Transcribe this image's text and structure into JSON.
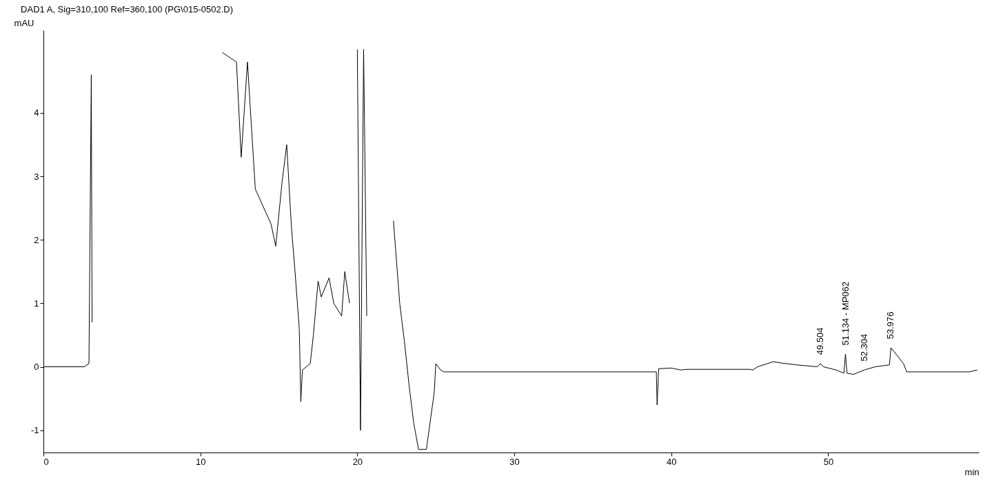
{
  "chart_data": {
    "type": "line",
    "title": "DAD1 A, Sig=310,100 Ref=360,100 (PG\\015-0502.D)",
    "xlabel": "min",
    "ylabel": "mAU",
    "x": [
      0,
      2.6,
      2.9,
      3.05,
      3.1,
      3.2,
      11.2,
      11.4,
      12.3,
      12.6,
      13,
      13.5,
      14.5,
      14.8,
      15.2,
      15.5,
      15.8,
      16,
      16.3,
      16.4,
      16.5,
      17,
      17.2,
      17.5,
      17.7,
      18.2,
      18.5,
      19,
      19.2,
      19.5,
      19.7,
      20,
      20.2,
      20.4,
      20.6,
      21.8,
      22.3,
      22.7,
      23,
      23.3,
      23.6,
      23.9,
      24.4,
      24.9,
      25,
      25.3,
      25.5,
      39.05,
      39.1,
      39.2,
      40,
      40.6,
      41,
      45,
      45.2,
      45.5,
      46.5,
      47,
      48,
      49.3,
      49.5,
      49.7,
      50.5,
      51,
      51.1,
      51.2,
      51.6,
      52.3,
      53,
      53.9,
      54,
      54.8,
      55,
      59,
      59.5
    ],
    "series": [
      {
        "color": "#000000",
        "values": [
          0,
          0,
          0.05,
          4.6,
          0.7,
          null,
          null,
          4.95,
          4.8,
          3.3,
          4.8,
          2.8,
          2.25,
          1.9,
          2.9,
          3.5,
          2.2,
          1.6,
          0.6,
          -0.55,
          -0.05,
          0.05,
          0.5,
          1.35,
          1.1,
          1.4,
          1.0,
          0.8,
          1.5,
          1.0,
          null,
          5.0,
          -1.0,
          5.0,
          0.8,
          null,
          2.3,
          1.0,
          0.4,
          -0.3,
          -0.9,
          -1.3,
          -1.3,
          -0.4,
          0.05,
          -0.05,
          -0.08,
          -0.08,
          -0.6,
          -0.03,
          -0.02,
          -0.05,
          -0.04,
          -0.04,
          -0.05,
          0.0,
          0.08,
          0.06,
          0.03,
          0.0,
          0.05,
          0.0,
          -0.05,
          -0.1,
          0.2,
          -0.1,
          -0.12,
          -0.05,
          0.0,
          0.03,
          0.3,
          0.05,
          -0.08,
          -0.08,
          -0.05
        ]
      }
    ],
    "xlim": [
      0,
      59.6
    ],
    "ylim": [
      -1.35,
      5.3
    ],
    "xticks": [
      0,
      10,
      20,
      30,
      40,
      50
    ],
    "yticks": [
      -1,
      0,
      1,
      2,
      3,
      4
    ],
    "grid": false,
    "annotations": [
      {
        "text": "49.504",
        "x": 49.504,
        "y": 0.1
      },
      {
        "text": "51.134 - MP062",
        "x": 51.134,
        "y": 0.25
      },
      {
        "text": "52.304",
        "x": 52.304,
        "y": 0.0
      },
      {
        "text": "53.976",
        "x": 53.976,
        "y": 0.35
      }
    ]
  }
}
